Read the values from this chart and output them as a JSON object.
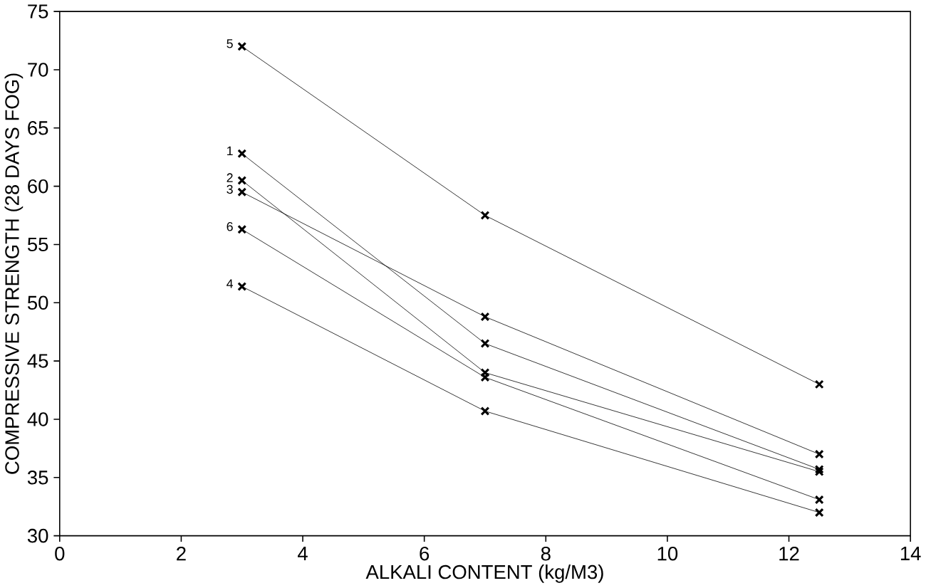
{
  "chart_data": {
    "type": "line",
    "xlabel": "ALKALI CONTENT (kg/M3)",
    "ylabel": "COMPRESSIVE STRENGTH (28 DAYS FOG)",
    "x": [
      3,
      7,
      12.5
    ],
    "series": [
      {
        "name": "1",
        "color": "#000000",
        "values": [
          62.8,
          46.5,
          35.7
        ]
      },
      {
        "name": "2",
        "color": "#000000",
        "values": [
          60.5,
          44.0,
          35.5
        ]
      },
      {
        "name": "3",
        "color": "#000000",
        "values": [
          59.5,
          48.8,
          37.0
        ]
      },
      {
        "name": "4",
        "color": "#000000",
        "values": [
          51.4,
          40.7,
          32.0
        ]
      },
      {
        "name": "5",
        "color": "#000000",
        "values": [
          72.0,
          57.5,
          43.0
        ]
      },
      {
        "name": "6",
        "color": "#000000",
        "values": [
          56.3,
          43.6,
          33.1
        ]
      }
    ],
    "xlim": [
      0,
      14
    ],
    "ylim": [
      30,
      75
    ],
    "xticks": [
      0,
      2,
      4,
      6,
      8,
      10,
      12,
      14
    ],
    "yticks": [
      30,
      35,
      40,
      45,
      50,
      55,
      60,
      65,
      70,
      75
    ],
    "marker": "cross",
    "line_style": "solid",
    "grid": false,
    "legend": false
  }
}
